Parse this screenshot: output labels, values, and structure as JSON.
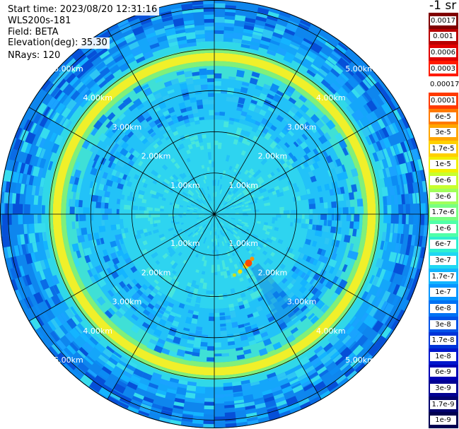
{
  "info": {
    "start_time": "Start time: 2023/08/20 12:31:16",
    "instrument": "WLS200s-181",
    "field": "Field: BETA",
    "elevation": "Elevation(deg): 35.30",
    "nrays": "NRays: 120"
  },
  "chart_data": {
    "type": "heatmap",
    "title": "",
    "projection": "polar-ppi",
    "range_rings_km": [
      1,
      2,
      3,
      4,
      5
    ],
    "ring_labels": [
      "1.00km",
      "2.00km",
      "3.00km",
      "4.00km",
      "5.00km"
    ],
    "max_range_km": 5.2,
    "spokes_deg": [
      0,
      30,
      60,
      90,
      120,
      150,
      180,
      210,
      240,
      270,
      300,
      330
    ],
    "rays": 120,
    "colors": {
      "background": "#1aa3ff",
      "inner_field": "#2ed4f0",
      "ring_peak": "#f0f02a",
      "ring_edge": "#80f07a",
      "outer_dark": "#0a6ce6",
      "hotspot": "#ff4a00"
    },
    "colorbar": {
      "unit_label": "-1 sr",
      "labels": [
        "0.0017",
        "0.001",
        "0.0006",
        "0.0003",
        "0.00017",
        "0.0001",
        "6e-5",
        "3e-5",
        "1.7e-5",
        "1e-5",
        "6e-6",
        "3e-6",
        "1.7e-6",
        "1e-6",
        "6e-7",
        "3e-7",
        "1.7e-7",
        "1e-7",
        "6e-8",
        "3e-8",
        "1.7e-8",
        "1e-8",
        "6e-9",
        "3e-9",
        "1.7e-9",
        "1e-9"
      ],
      "colors": [
        "#7f0000",
        "#b80000",
        "#e00000",
        "#ff1a00",
        "#ffffff",
        "#ff3a00",
        "#ff7a00",
        "#ffa600",
        "#ffd000",
        "#f2f000",
        "#c8ff2e",
        "#a0ff5a",
        "#78ff82",
        "#50ffa8",
        "#2ef0d0",
        "#20d8f2",
        "#12b6ff",
        "#0896ff",
        "#0072f4",
        "#0052e8",
        "#0034d8",
        "#0016cc",
        "#0000b4",
        "#000092",
        "#00006e",
        "#000050"
      ]
    },
    "hotspot": {
      "azimuth_deg": 145,
      "range_km": 1.45
    }
  }
}
